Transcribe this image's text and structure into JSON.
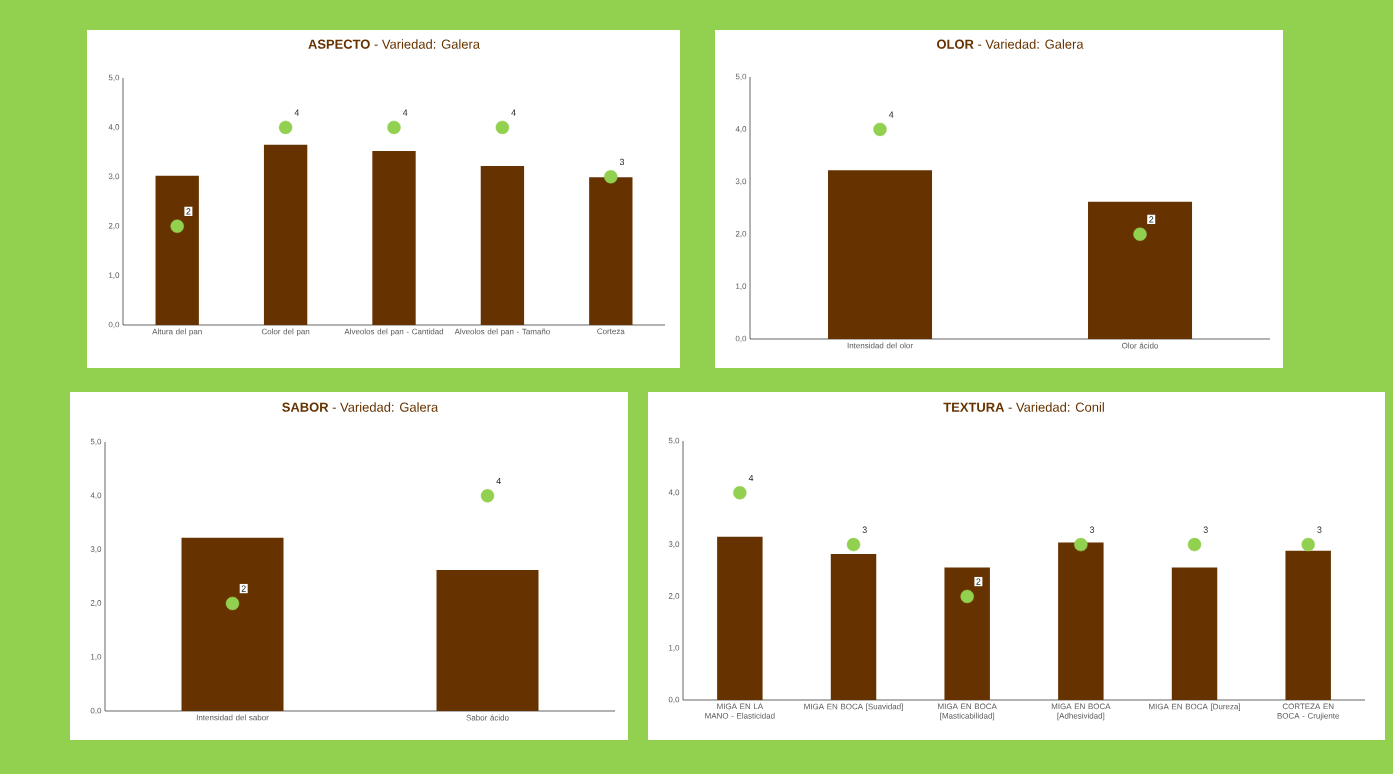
{
  "chart_data": [
    {
      "type": "bar",
      "title": "**ASPECTO** - Variedad: Galera",
      "categories": [
        "Altura del pan",
        "Color del pan",
        "Alveolos del pan - Cantidad",
        "Alveolos del pan - Tamaño",
        "Corteza"
      ],
      "series": [
        {
          "color": "#663300",
          "values": [
            3.02,
            3.65,
            3.52,
            3.22,
            2.99
          ]
        },
        {
          "type": "scatter",
          "color": "#92d050",
          "marker": "circle",
          "values": [
            2,
            4,
            4,
            4,
            3
          ],
          "value_labels": [
            "2",
            "4",
            "4",
            "4",
            "3"
          ]
        }
      ],
      "ylim": [
        0,
        5
      ],
      "yticks": [
        {
          "value": 0,
          "label": "0,0"
        },
        {
          "value": 1,
          "label": "1,0"
        },
        {
          "value": 2,
          "label": "2,0"
        },
        {
          "value": 3,
          "label": "3,0"
        },
        {
          "value": 4,
          "label": "4,0"
        },
        {
          "value": 5,
          "label": "5,0"
        }
      ]
    },
    {
      "type": "bar",
      "title": "**OLOR** - Variedad: Galera",
      "categories": [
        "Intensidad del olor",
        "Olor ácido"
      ],
      "series": [
        {
          "color": "#663300",
          "values": [
            3.22,
            2.62
          ]
        },
        {
          "type": "scatter",
          "color": "#92d050",
          "marker": "circle",
          "values": [
            4,
            2
          ],
          "value_labels": [
            "4",
            "2"
          ]
        }
      ],
      "ylim": [
        0,
        5
      ],
      "yticks": [
        {
          "value": 0,
          "label": "0,0"
        },
        {
          "value": 1,
          "label": "1,0"
        },
        {
          "value": 2,
          "label": "2,0"
        },
        {
          "value": 3,
          "label": "3,0"
        },
        {
          "value": 4,
          "label": "4,0"
        },
        {
          "value": 5,
          "label": "5,0"
        }
      ]
    },
    {
      "type": "bar",
      "title": "**SABOR** - Variedad: Galera",
      "categories": [
        "Intensidad del sabor",
        "Sabor ácido"
      ],
      "series": [
        {
          "color": "#663300",
          "values": [
            3.22,
            2.62
          ]
        },
        {
          "type": "scatter",
          "color": "#92d050",
          "marker": "circle",
          "values": [
            2,
            4
          ],
          "value_labels": [
            "2",
            "4"
          ]
        }
      ],
      "ylim": [
        0,
        5
      ],
      "yticks": [
        {
          "value": 0,
          "label": "0,0"
        },
        {
          "value": 1,
          "label": "1,0"
        },
        {
          "value": 2,
          "label": "2,0"
        },
        {
          "value": 3,
          "label": "3,0"
        },
        {
          "value": 4,
          "label": "4,0"
        },
        {
          "value": 5,
          "label": "5,0"
        }
      ]
    },
    {
      "type": "bar",
      "title": "**TEXTURA** - Variedad: Conil",
      "categories": [
        "MIGA EN LA MANO - Elasticidad",
        "MIGA EN BOCA [Suavidad]",
        "MIGA EN BOCA [Masticabilidad]",
        "MIGA EN BOCA [Adhesividad]",
        "MIGA EN BOCA [Dureza]",
        "CORTEZA EN BOCA - Crujiente"
      ],
      "series": [
        {
          "color": "#663300",
          "values": [
            3.15,
            2.82,
            2.56,
            3.04,
            2.56,
            2.88
          ]
        },
        {
          "type": "scatter",
          "color": "#92d050",
          "marker": "circle",
          "values": [
            4,
            3,
            2,
            3,
            3,
            3
          ],
          "value_labels": [
            "4",
            "3",
            "2",
            "3",
            "3",
            "3"
          ]
        }
      ],
      "ylim": [
        0,
        5
      ],
      "yticks": [
        {
          "value": 0,
          "label": "0,0"
        },
        {
          "value": 1,
          "label": "1,0"
        },
        {
          "value": 2,
          "label": "2,0"
        },
        {
          "value": 3,
          "label": "3,0"
        },
        {
          "value": 4,
          "label": "4,0"
        },
        {
          "value": 5,
          "label": "5,0"
        }
      ]
    }
  ]
}
